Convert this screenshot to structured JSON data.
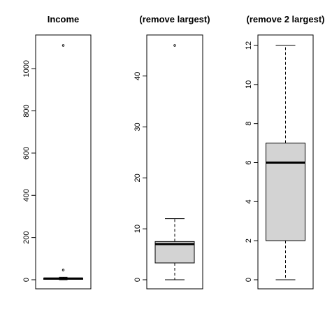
{
  "chart_data": [
    {
      "type": "box",
      "title": "Income",
      "xlabel": "",
      "ylabel": "",
      "ylim": [
        0,
        1110
      ],
      "yticks": [
        0,
        200,
        400,
        600,
        800,
        1000
      ],
      "box": {
        "min": 0,
        "q1": 2,
        "median": 6,
        "q3": 7.3,
        "max": 12,
        "outliers": [
          46,
          1110
        ]
      },
      "colors": {
        "box_fill": "#d3d3d3",
        "stroke": "#000000"
      }
    },
    {
      "type": "box",
      "title": "(remove largest)",
      "xlabel": "",
      "ylabel": "",
      "ylim": [
        0,
        46
      ],
      "yticks": [
        0,
        10,
        20,
        30,
        40
      ],
      "box": {
        "min": 0,
        "q1": 3.3,
        "median": 7,
        "q3": 7.5,
        "max": 12,
        "outliers": [
          46
        ]
      },
      "colors": {
        "box_fill": "#d3d3d3",
        "stroke": "#000000"
      }
    },
    {
      "type": "box",
      "title": "(remove 2 largest)",
      "xlabel": "",
      "ylabel": "",
      "ylim": [
        0,
        12
      ],
      "yticks": [
        0,
        2,
        4,
        6,
        8,
        10,
        12
      ],
      "box": {
        "min": 0,
        "q1": 2,
        "median": 6,
        "q3": 7,
        "max": 12,
        "outliers": []
      },
      "colors": {
        "box_fill": "#d3d3d3",
        "stroke": "#000000"
      }
    }
  ]
}
